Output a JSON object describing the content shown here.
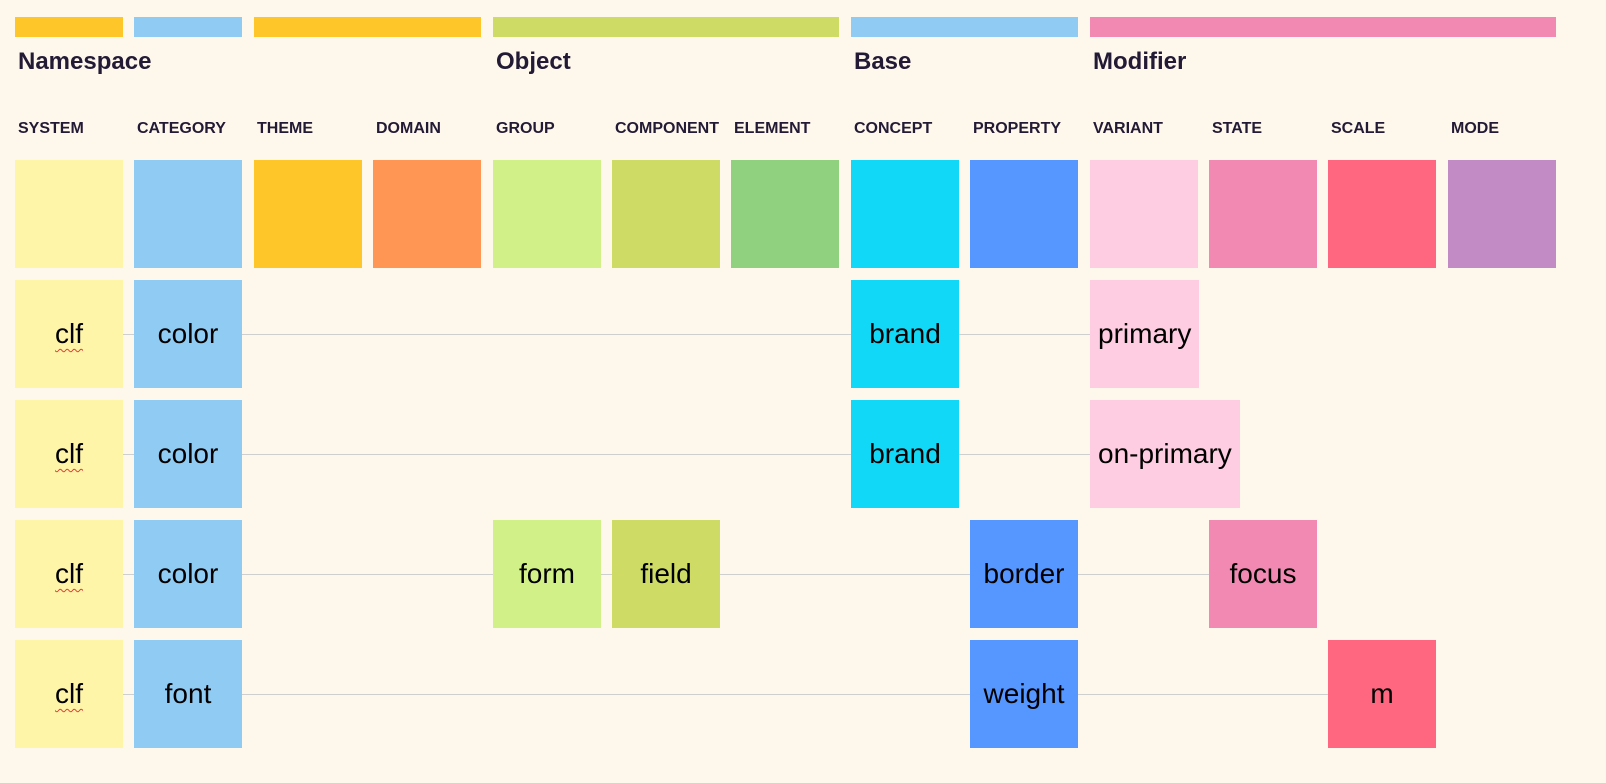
{
  "groups": [
    {
      "id": "namespace",
      "title": "Namespace",
      "color": "#ffc629",
      "columns": [
        "system",
        "category",
        "theme",
        "domain"
      ]
    },
    {
      "id": "object",
      "title": "Object",
      "color": "#cedc66",
      "columns": [
        "group",
        "component",
        "element"
      ]
    },
    {
      "id": "base",
      "title": "Base",
      "color": "#8fcbf3",
      "columns": [
        "concept",
        "property"
      ]
    },
    {
      "id": "modifier",
      "title": "Modifier",
      "color": "#f189b2",
      "columns": [
        "variant",
        "state",
        "scale",
        "mode"
      ]
    }
  ],
  "columns": [
    {
      "id": "system",
      "label": "SYSTEM",
      "color": "#fff5a9",
      "bar_color": "#ffc629"
    },
    {
      "id": "category",
      "label": "CATEGORY",
      "color": "#8fcbf3",
      "bar_color": "#8fcbf3"
    },
    {
      "id": "theme",
      "label": "THEME",
      "color": "#ffc629",
      "bar_color": "#ffc629"
    },
    {
      "id": "domain",
      "label": "DOMAIN",
      "color": "#ff9654"
    },
    {
      "id": "group",
      "label": "GROUP",
      "color": "#d1f088"
    },
    {
      "id": "component",
      "label": "COMPONENT",
      "color": "#cedc66"
    },
    {
      "id": "element",
      "label": "ELEMENT",
      "color": "#8fd17e"
    },
    {
      "id": "concept",
      "label": "CONCEPT",
      "color": "#11d8f7"
    },
    {
      "id": "property",
      "label": "PROPERTY",
      "color": "#5596ff"
    },
    {
      "id": "variant",
      "label": "VARIANT",
      "color": "#fecde1"
    },
    {
      "id": "state",
      "label": "STATE",
      "color": "#f189b2"
    },
    {
      "id": "scale",
      "label": "SCALE",
      "color": "#ff6680"
    },
    {
      "id": "mode",
      "label": "MODE",
      "color": "#c28bc5"
    }
  ],
  "rows": [
    {
      "tokens": [
        {
          "col": "system",
          "text": "clf",
          "flag": "spelling"
        },
        {
          "col": "category",
          "text": "color"
        },
        {
          "col": "concept",
          "text": "brand"
        },
        {
          "col": "variant",
          "text": "primary"
        }
      ]
    },
    {
      "tokens": [
        {
          "col": "system",
          "text": "clf",
          "flag": "spelling"
        },
        {
          "col": "category",
          "text": "color"
        },
        {
          "col": "concept",
          "text": "brand"
        },
        {
          "col": "variant",
          "text": "on-primary"
        }
      ]
    },
    {
      "tokens": [
        {
          "col": "system",
          "text": "clf",
          "flag": "spelling"
        },
        {
          "col": "category",
          "text": "color"
        },
        {
          "col": "group",
          "text": "form"
        },
        {
          "col": "component",
          "text": "field"
        },
        {
          "col": "property",
          "text": "border"
        },
        {
          "col": "state",
          "text": "focus"
        }
      ]
    },
    {
      "tokens": [
        {
          "col": "system",
          "text": "clf",
          "flag": "spelling"
        },
        {
          "col": "category",
          "text": "font"
        },
        {
          "col": "property",
          "text": "weight"
        },
        {
          "col": "scale",
          "text": "m"
        }
      ]
    }
  ]
}
